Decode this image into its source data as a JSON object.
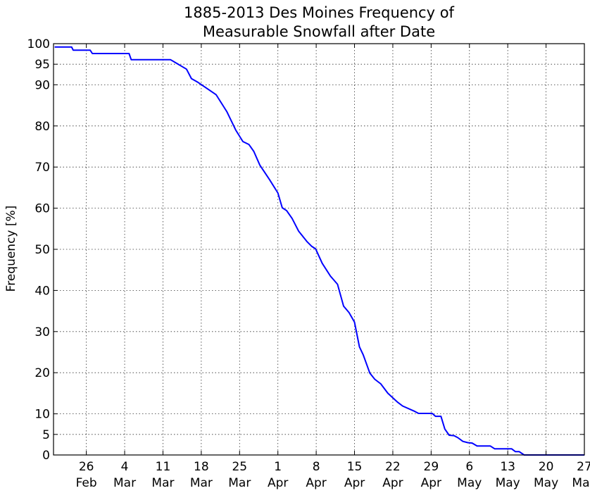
{
  "chart_data": {
    "type": "line",
    "title_lines": [
      "1885-2013 Des Moines Frequency of",
      "Measurable Snowfall after Date"
    ],
    "ylabel": "Frequency [%]",
    "xlabel": "",
    "grid": true,
    "xlim_days_from_feb26": [
      -6,
      91
    ],
    "ylim": [
      0,
      100
    ],
    "x_ticks": [
      {
        "day": 0,
        "num": "26",
        "month": "Feb"
      },
      {
        "day": 7,
        "num": "4",
        "month": "Mar"
      },
      {
        "day": 14,
        "num": "11",
        "month": "Mar"
      },
      {
        "day": 21,
        "num": "18",
        "month": "Mar"
      },
      {
        "day": 28,
        "num": "25",
        "month": "Mar"
      },
      {
        "day": 35,
        "num": "1",
        "month": "Apr"
      },
      {
        "day": 42,
        "num": "8",
        "month": "Apr"
      },
      {
        "day": 49,
        "num": "15",
        "month": "Apr"
      },
      {
        "day": 56,
        "num": "22",
        "month": "Apr"
      },
      {
        "day": 63,
        "num": "29",
        "month": "Apr"
      },
      {
        "day": 70,
        "num": "6",
        "month": "May"
      },
      {
        "day": 77,
        "num": "13",
        "month": "May"
      },
      {
        "day": 84,
        "num": "20",
        "month": "May"
      },
      {
        "day": 91,
        "num": "27",
        "month": "May"
      }
    ],
    "y_ticks": [
      0,
      5,
      10,
      20,
      30,
      40,
      50,
      60,
      70,
      80,
      90,
      95,
      100
    ],
    "series": [
      {
        "color": "#0000ff",
        "points": [
          [
            -5.8,
            99.2
          ],
          [
            -2.7,
            99.2
          ],
          [
            -2.4,
            98.4
          ],
          [
            0.7,
            98.4
          ],
          [
            1.1,
            97.6
          ],
          [
            7.8,
            97.6
          ],
          [
            8.2,
            96.1
          ],
          [
            15.4,
            96.1
          ],
          [
            18.3,
            93.8
          ],
          [
            19.2,
            91.5
          ],
          [
            20.4,
            90.6
          ],
          [
            23.7,
            87.6
          ],
          [
            25.7,
            83.4
          ],
          [
            27.3,
            79.0
          ],
          [
            28.6,
            76.2
          ],
          [
            29.7,
            75.5
          ],
          [
            30.6,
            73.8
          ],
          [
            31.7,
            70.5
          ],
          [
            33.5,
            66.9
          ],
          [
            35.0,
            63.7
          ],
          [
            35.8,
            60.1
          ],
          [
            36.6,
            59.4
          ],
          [
            37.6,
            57.5
          ],
          [
            38.8,
            54.4
          ],
          [
            40.3,
            51.9
          ],
          [
            41.2,
            50.7
          ],
          [
            41.9,
            50.1
          ],
          [
            43.1,
            46.6
          ],
          [
            44.6,
            43.5
          ],
          [
            45.9,
            41.5
          ],
          [
            47.0,
            36.2
          ],
          [
            48.0,
            34.6
          ],
          [
            49.0,
            32.3
          ],
          [
            49.9,
            26.3
          ],
          [
            50.6,
            24.3
          ],
          [
            51.8,
            19.9
          ],
          [
            52.7,
            18.4
          ],
          [
            53.8,
            17.3
          ],
          [
            55.1,
            15.0
          ],
          [
            56.9,
            12.8
          ],
          [
            57.8,
            11.9
          ],
          [
            60.0,
            10.6
          ],
          [
            60.7,
            10.1
          ],
          [
            63.2,
            10.1
          ],
          [
            63.8,
            9.4
          ],
          [
            64.8,
            9.4
          ],
          [
            65.5,
            6.3
          ],
          [
            66.3,
            4.8
          ],
          [
            67.2,
            4.7
          ],
          [
            67.9,
            4.2
          ],
          [
            68.8,
            3.3
          ],
          [
            69.7,
            3.0
          ],
          [
            70.5,
            2.9
          ],
          [
            71.4,
            2.2
          ],
          [
            73.8,
            2.2
          ],
          [
            74.6,
            1.5
          ],
          [
            77.7,
            1.5
          ],
          [
            78.4,
            0.8
          ],
          [
            79.1,
            0.8
          ],
          [
            80.0,
            0.0
          ],
          [
            91.0,
            0.0
          ]
        ]
      }
    ]
  }
}
